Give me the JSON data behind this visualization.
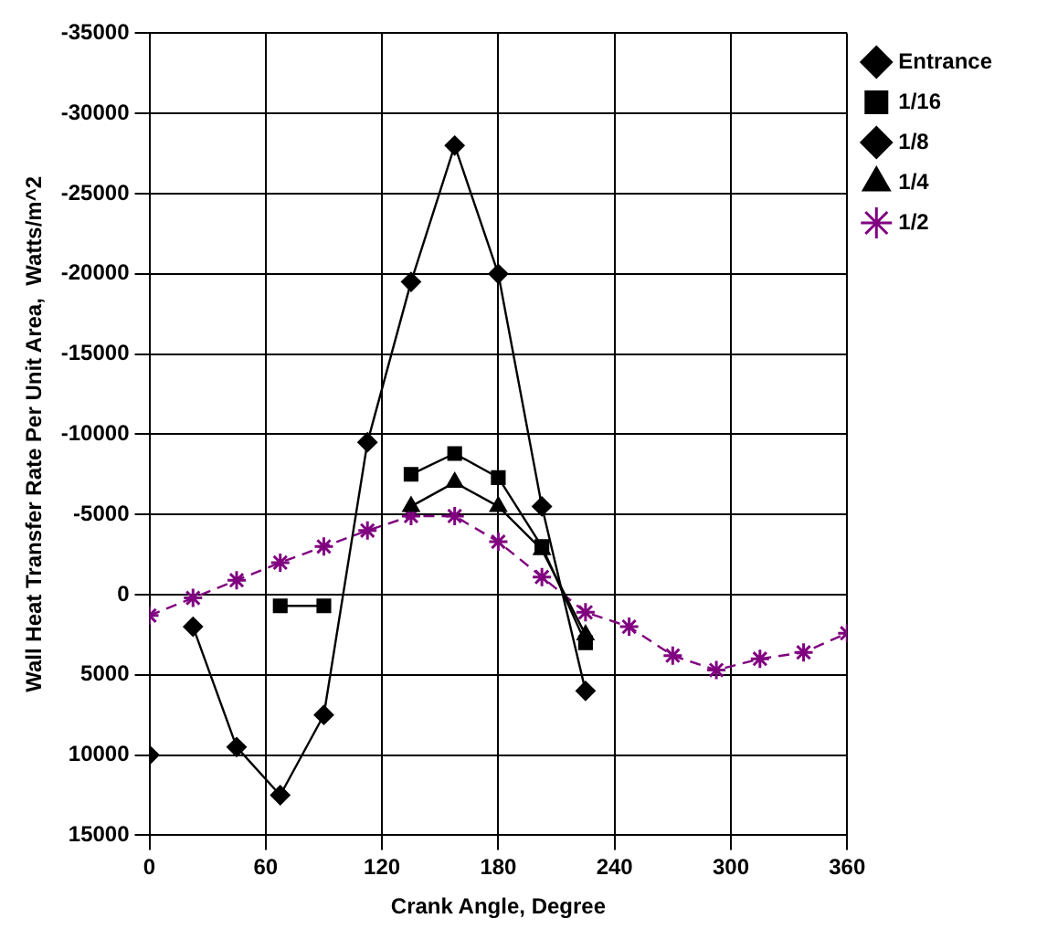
{
  "chart_data": {
    "type": "line",
    "xlabel": "Crank Angle, Degree",
    "ylabel": "Wall Heat Transfer Rate Per Unit Area,  Watts/m^2",
    "x": [
      0,
      22.5,
      45,
      67.5,
      90,
      112.5,
      135,
      157.5,
      180,
      202.5,
      225,
      247.5,
      270,
      292.5,
      315,
      337.5,
      360
    ],
    "series": [
      {
        "name": "Entrance",
        "color": "#000000",
        "marker": "diamond",
        "line_style": "solid",
        "values": [
          null,
          2000,
          9500,
          12500,
          7500,
          -9500,
          -19500,
          -28000,
          -20000,
          -5500,
          6000,
          null,
          null,
          null,
          null,
          null,
          null
        ]
      },
      {
        "name": "1/16",
        "color": "#000000",
        "marker": "square",
        "line_style": "solid",
        "values": [
          null,
          null,
          null,
          700,
          700,
          null,
          -7500,
          -8800,
          -7300,
          -3000,
          3000,
          null,
          null,
          null,
          null,
          null,
          null
        ]
      },
      {
        "name": "1/8",
        "color": "#000000",
        "marker": "diamond",
        "line_style": "solid",
        "values": [
          10000,
          null,
          null,
          null,
          null,
          null,
          null,
          null,
          null,
          null,
          null,
          null,
          null,
          null,
          null,
          null,
          null
        ]
      },
      {
        "name": "1/4",
        "color": "#000000",
        "marker": "triangle",
        "line_style": "solid",
        "values": [
          null,
          null,
          null,
          null,
          null,
          null,
          -5500,
          -7000,
          -5500,
          -2800,
          2500,
          null,
          null,
          null,
          null,
          null,
          null
        ]
      },
      {
        "name": "1/2",
        "color": "#800080",
        "marker": "cross",
        "line_style": "dashed",
        "values": [
          1300,
          200,
          -900,
          -2000,
          -3000,
          -4000,
          -4900,
          -4900,
          -3300,
          -1100,
          1100,
          2000,
          3800,
          4700,
          4000,
          3600,
          2400
        ]
      }
    ],
    "xlim": [
      0,
      360
    ],
    "xticks": [
      0,
      60,
      120,
      180,
      240,
      300,
      360
    ],
    "ylim": [
      15000,
      -35000
    ],
    "yticks": [
      15000,
      10000,
      5000,
      0,
      -5000,
      -10000,
      -15000,
      -20000,
      -25000,
      -30000,
      -35000
    ],
    "grid": true,
    "legend": "top right"
  }
}
